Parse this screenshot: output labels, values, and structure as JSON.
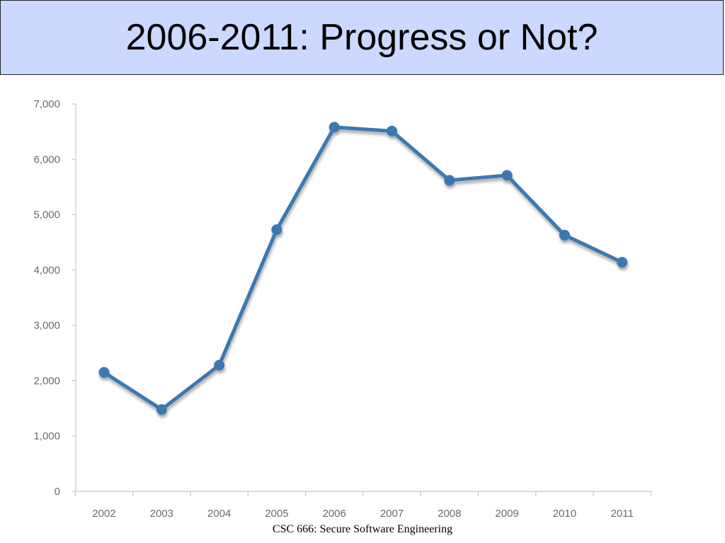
{
  "slide": {
    "title": "2006-2011: Progress or Not?",
    "footer": "CSC 666: Secure Software Engineering"
  },
  "chart_data": {
    "type": "line",
    "title": "",
    "xlabel": "",
    "ylabel": "",
    "categories": [
      "2002",
      "2003",
      "2004",
      "2005",
      "2006",
      "2007",
      "2008",
      "2009",
      "2010",
      "2011"
    ],
    "series": [
      {
        "values": [
          2150,
          1480,
          2280,
          4730,
          6580,
          6510,
          5620,
          5710,
          4630,
          4140
        ],
        "color": "#3a78b1"
      }
    ],
    "yticks": [
      "0",
      "1,000",
      "2,000",
      "3,000",
      "4,000",
      "5,000",
      "6,000",
      "7,000"
    ],
    "ytick_values": [
      0,
      1000,
      2000,
      3000,
      4000,
      5000,
      6000,
      7000
    ],
    "ylim": [
      0,
      7000
    ],
    "grid": false,
    "legend": "none",
    "axis_color": "#c8c8c8"
  }
}
